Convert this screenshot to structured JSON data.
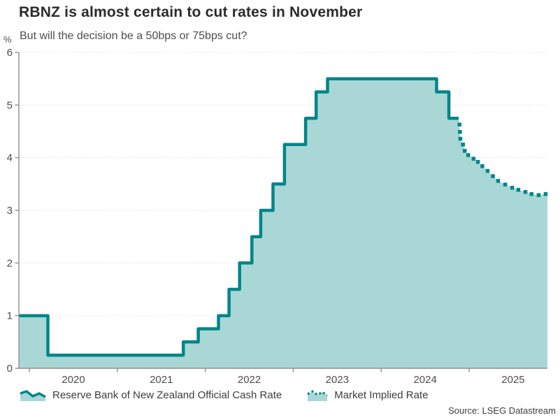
{
  "header": {
    "title": "RBNZ is almost certain to cut rates in November",
    "subtitle": "But will the decision be a 50bps or 75bps cut?"
  },
  "source": "Source: LSEG Datastream",
  "colors": {
    "line": "#00858a",
    "fill": "#a9d7d5",
    "axis": "#8f8f8f",
    "grid": "#e0e0e0",
    "title": "#2b2b2b",
    "text": "#4d4d4d"
  },
  "chart_data": {
    "type": "line",
    "title": "RBNZ is almost certain to cut rates in November",
    "subtitle": "But will the decision be a 50bps or 75bps cut?",
    "xlabel": "",
    "ylabel": "%",
    "x_range": [
      2019.88,
      2025.89
    ],
    "ylim": [
      0,
      6
    ],
    "yticks": [
      0,
      1,
      2,
      3,
      4,
      5,
      6
    ],
    "xticks": [
      2020,
      2021,
      2022,
      2023,
      2024,
      2025
    ],
    "grid": "dotted-horizontal",
    "legend_position": "bottom",
    "series": [
      {
        "name": "Reserve Bank of New Zealand Official Cash Rate",
        "style": "solid-step",
        "points": [
          [
            2019.88,
            1.0
          ],
          [
            2020.21,
            0.25
          ],
          [
            2021.75,
            0.5
          ],
          [
            2021.92,
            0.75
          ],
          [
            2022.15,
            1.0
          ],
          [
            2022.27,
            1.5
          ],
          [
            2022.39,
            2.0
          ],
          [
            2022.53,
            2.5
          ],
          [
            2022.63,
            3.0
          ],
          [
            2022.77,
            3.5
          ],
          [
            2022.9,
            4.25
          ],
          [
            2023.14,
            4.75
          ],
          [
            2023.26,
            5.25
          ],
          [
            2023.39,
            5.5
          ],
          [
            2024.63,
            5.25
          ],
          [
            2024.77,
            4.75
          ],
          [
            2024.88,
            4.75
          ]
        ]
      },
      {
        "name": "Market Implied Rate",
        "style": "dotted",
        "points": [
          [
            2024.89,
            4.63
          ],
          [
            2024.895,
            4.49
          ],
          [
            2024.9,
            4.36
          ],
          [
            2024.93,
            4.25
          ],
          [
            2024.95,
            4.13
          ],
          [
            2024.99,
            4.05
          ],
          [
            2025.05,
            3.98
          ],
          [
            2025.1,
            3.92
          ],
          [
            2025.15,
            3.84
          ],
          [
            2025.21,
            3.75
          ],
          [
            2025.27,
            3.65
          ],
          [
            2025.33,
            3.56
          ],
          [
            2025.41,
            3.49
          ],
          [
            2025.49,
            3.43
          ],
          [
            2025.56,
            3.39
          ],
          [
            2025.64,
            3.35
          ],
          [
            2025.71,
            3.31
          ],
          [
            2025.79,
            3.29
          ],
          [
            2025.87,
            3.31
          ]
        ]
      }
    ]
  }
}
